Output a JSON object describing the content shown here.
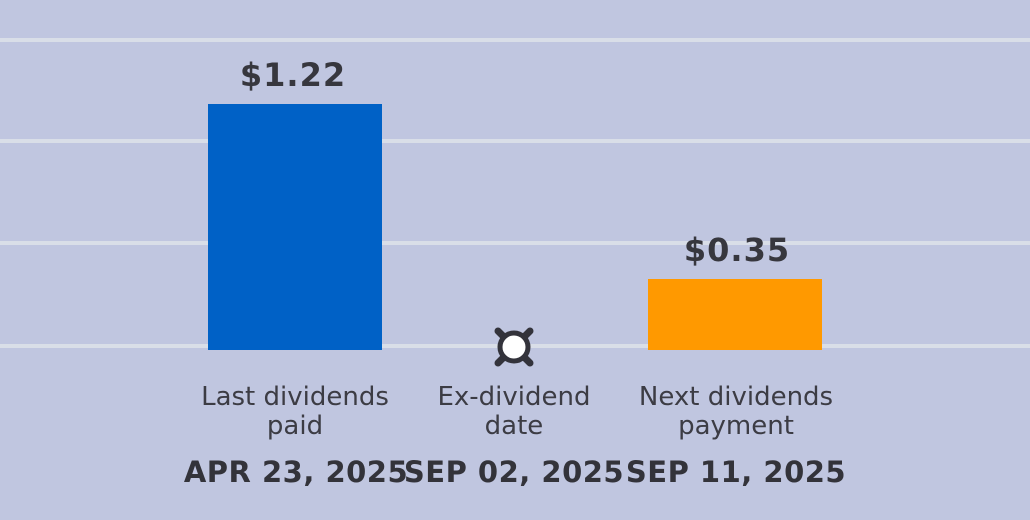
{
  "chart": {
    "items": [
      {
        "type": "bar",
        "label_line1": "Last dividends",
        "label_line2": "paid",
        "date": "APR 23, 2025",
        "value": 1.22,
        "value_label": "$1.22",
        "color": "#0061c6"
      },
      {
        "type": "marker",
        "label_line1": "Ex-dividend",
        "label_line2": "date",
        "date": "SEP 02, 2025",
        "marker_symbol": "circle-x-open",
        "marker_color": "#33333b",
        "marker_fill": "#ffffff"
      },
      {
        "type": "bar",
        "label_line1": "Next dividends",
        "label_line2": "payment",
        "date": "SEP 11, 2025",
        "value": 0.35,
        "value_label": "$0.35",
        "color": "#ff9900"
      }
    ]
  },
  "chart_data": {
    "type": "bar",
    "categories": [
      "Last dividends paid",
      "Ex-dividend date",
      "Next dividends payment"
    ],
    "values": [
      1.22,
      null,
      0.35
    ],
    "data_labels": [
      "$1.22",
      null,
      "$0.35"
    ],
    "secondary_tick_labels": [
      "APR 23, 2025",
      "SEP 02, 2025",
      "SEP 11, 2025"
    ],
    "marker_point": {
      "category": "Ex-dividend date",
      "y": 0,
      "symbol": "circle-x-open"
    },
    "title": "",
    "xlabel": "",
    "ylabel": "",
    "ylim": [
      0,
      1.5
    ],
    "gridline_values": [
      0,
      0.5,
      1.0,
      1.5
    ],
    "grid": true,
    "legend": false,
    "colors": {
      "bar_last_dividends": "#0061c6",
      "bar_next_dividends": "#ff9900",
      "background": "#c0c6e0",
      "gridline": "#d9dee8",
      "text": "#37373e"
    }
  }
}
